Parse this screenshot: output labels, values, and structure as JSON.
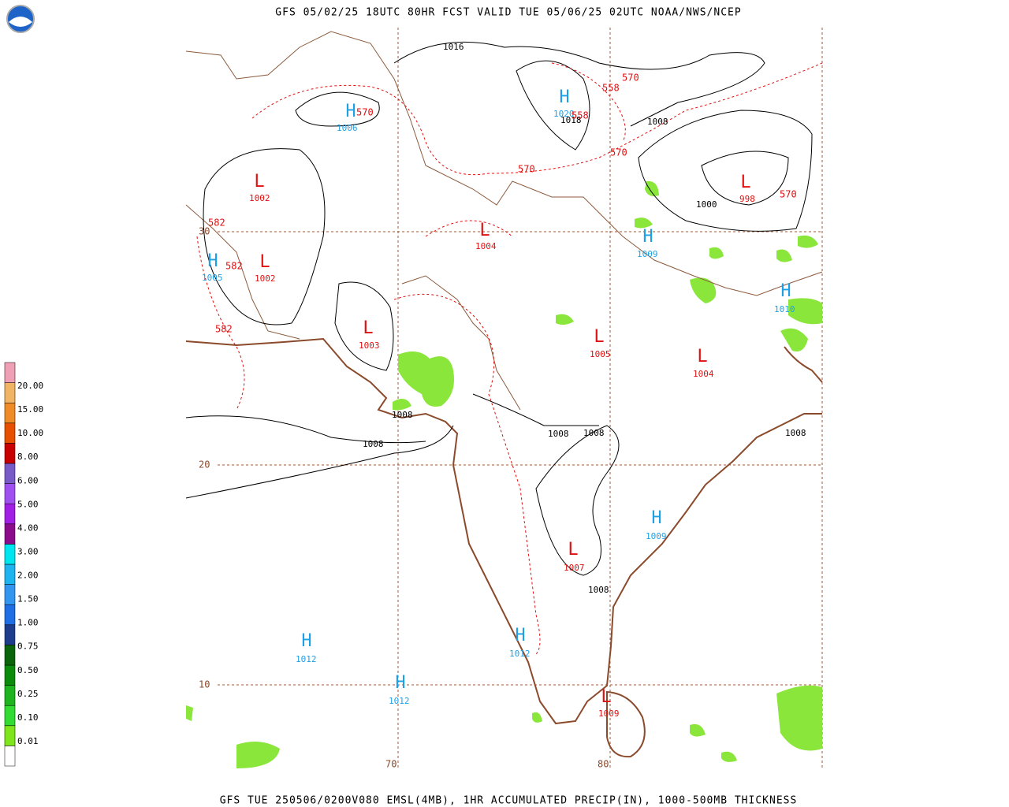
{
  "header": {
    "title": "GFS 05/02/25 18UTC 80HR FCST VALID TUE 05/06/25 02UTC NOAA/NWS/NCEP"
  },
  "footer": "GFS TUE 250506/0200V080 EMSL(4MB), 1HR ACCUMULATED PRECIP(IN), 1000-500MB THICKNESS",
  "legend": {
    "labels": [
      "0.01",
      "0.10",
      "0.25",
      "0.50",
      "0.75",
      "1.00",
      "1.50",
      "2.00",
      "3.00",
      "4.00",
      "5.00",
      "6.00",
      "8.00",
      "10.00",
      "15.00",
      "20.00"
    ],
    "colors": [
      "#ffffff",
      "#7fe61e",
      "#32dc32",
      "#1eb41e",
      "#0a8c0a",
      "#0a640a",
      "#1e3c8c",
      "#1e6ee6",
      "#3296f0",
      "#1eb4f0",
      "#00e6f0",
      "#8c0a8c",
      "#a01ee6",
      "#a050f0",
      "#785ac8",
      "#c80000",
      "#e65000",
      "#f08c28",
      "#f0b464",
      "#f0a0b4"
    ]
  },
  "centers": [
    {
      "letter": "H",
      "value": "1006"
    },
    {
      "letter": "H",
      "value": "1020"
    },
    {
      "letter": "L",
      "value": "1002"
    },
    {
      "letter": "L",
      "value": "1004"
    },
    {
      "letter": "H",
      "value": "1009"
    },
    {
      "letter": "H",
      "value": "1005"
    },
    {
      "letter": "L",
      "value": "1002"
    },
    {
      "letter": "L",
      "value": "998"
    },
    {
      "letter": "H",
      "value": "1010"
    },
    {
      "letter": "L",
      "value": "1003"
    },
    {
      "letter": "L",
      "value": "1005"
    },
    {
      "letter": "L",
      "value": "1004"
    },
    {
      "letter": "H",
      "value": "1009"
    },
    {
      "letter": "L",
      "value": "1007"
    },
    {
      "letter": "H",
      "value": "1012"
    },
    {
      "letter": "H",
      "value": "1012"
    },
    {
      "letter": "H",
      "value": "1012"
    },
    {
      "letter": "L",
      "value": "1009"
    }
  ],
  "isobar_labels": [
    "1016",
    "1018",
    "1008",
    "1000",
    "1008",
    "1008",
    "1008",
    "1008",
    "1008",
    "1008"
  ],
  "thickness_labels": [
    "570",
    "558",
    "570",
    "558",
    "570",
    "570",
    "570",
    "582",
    "582",
    "582"
  ],
  "grid_labels": [
    "30",
    "20",
    "10",
    "70",
    "80"
  ]
}
